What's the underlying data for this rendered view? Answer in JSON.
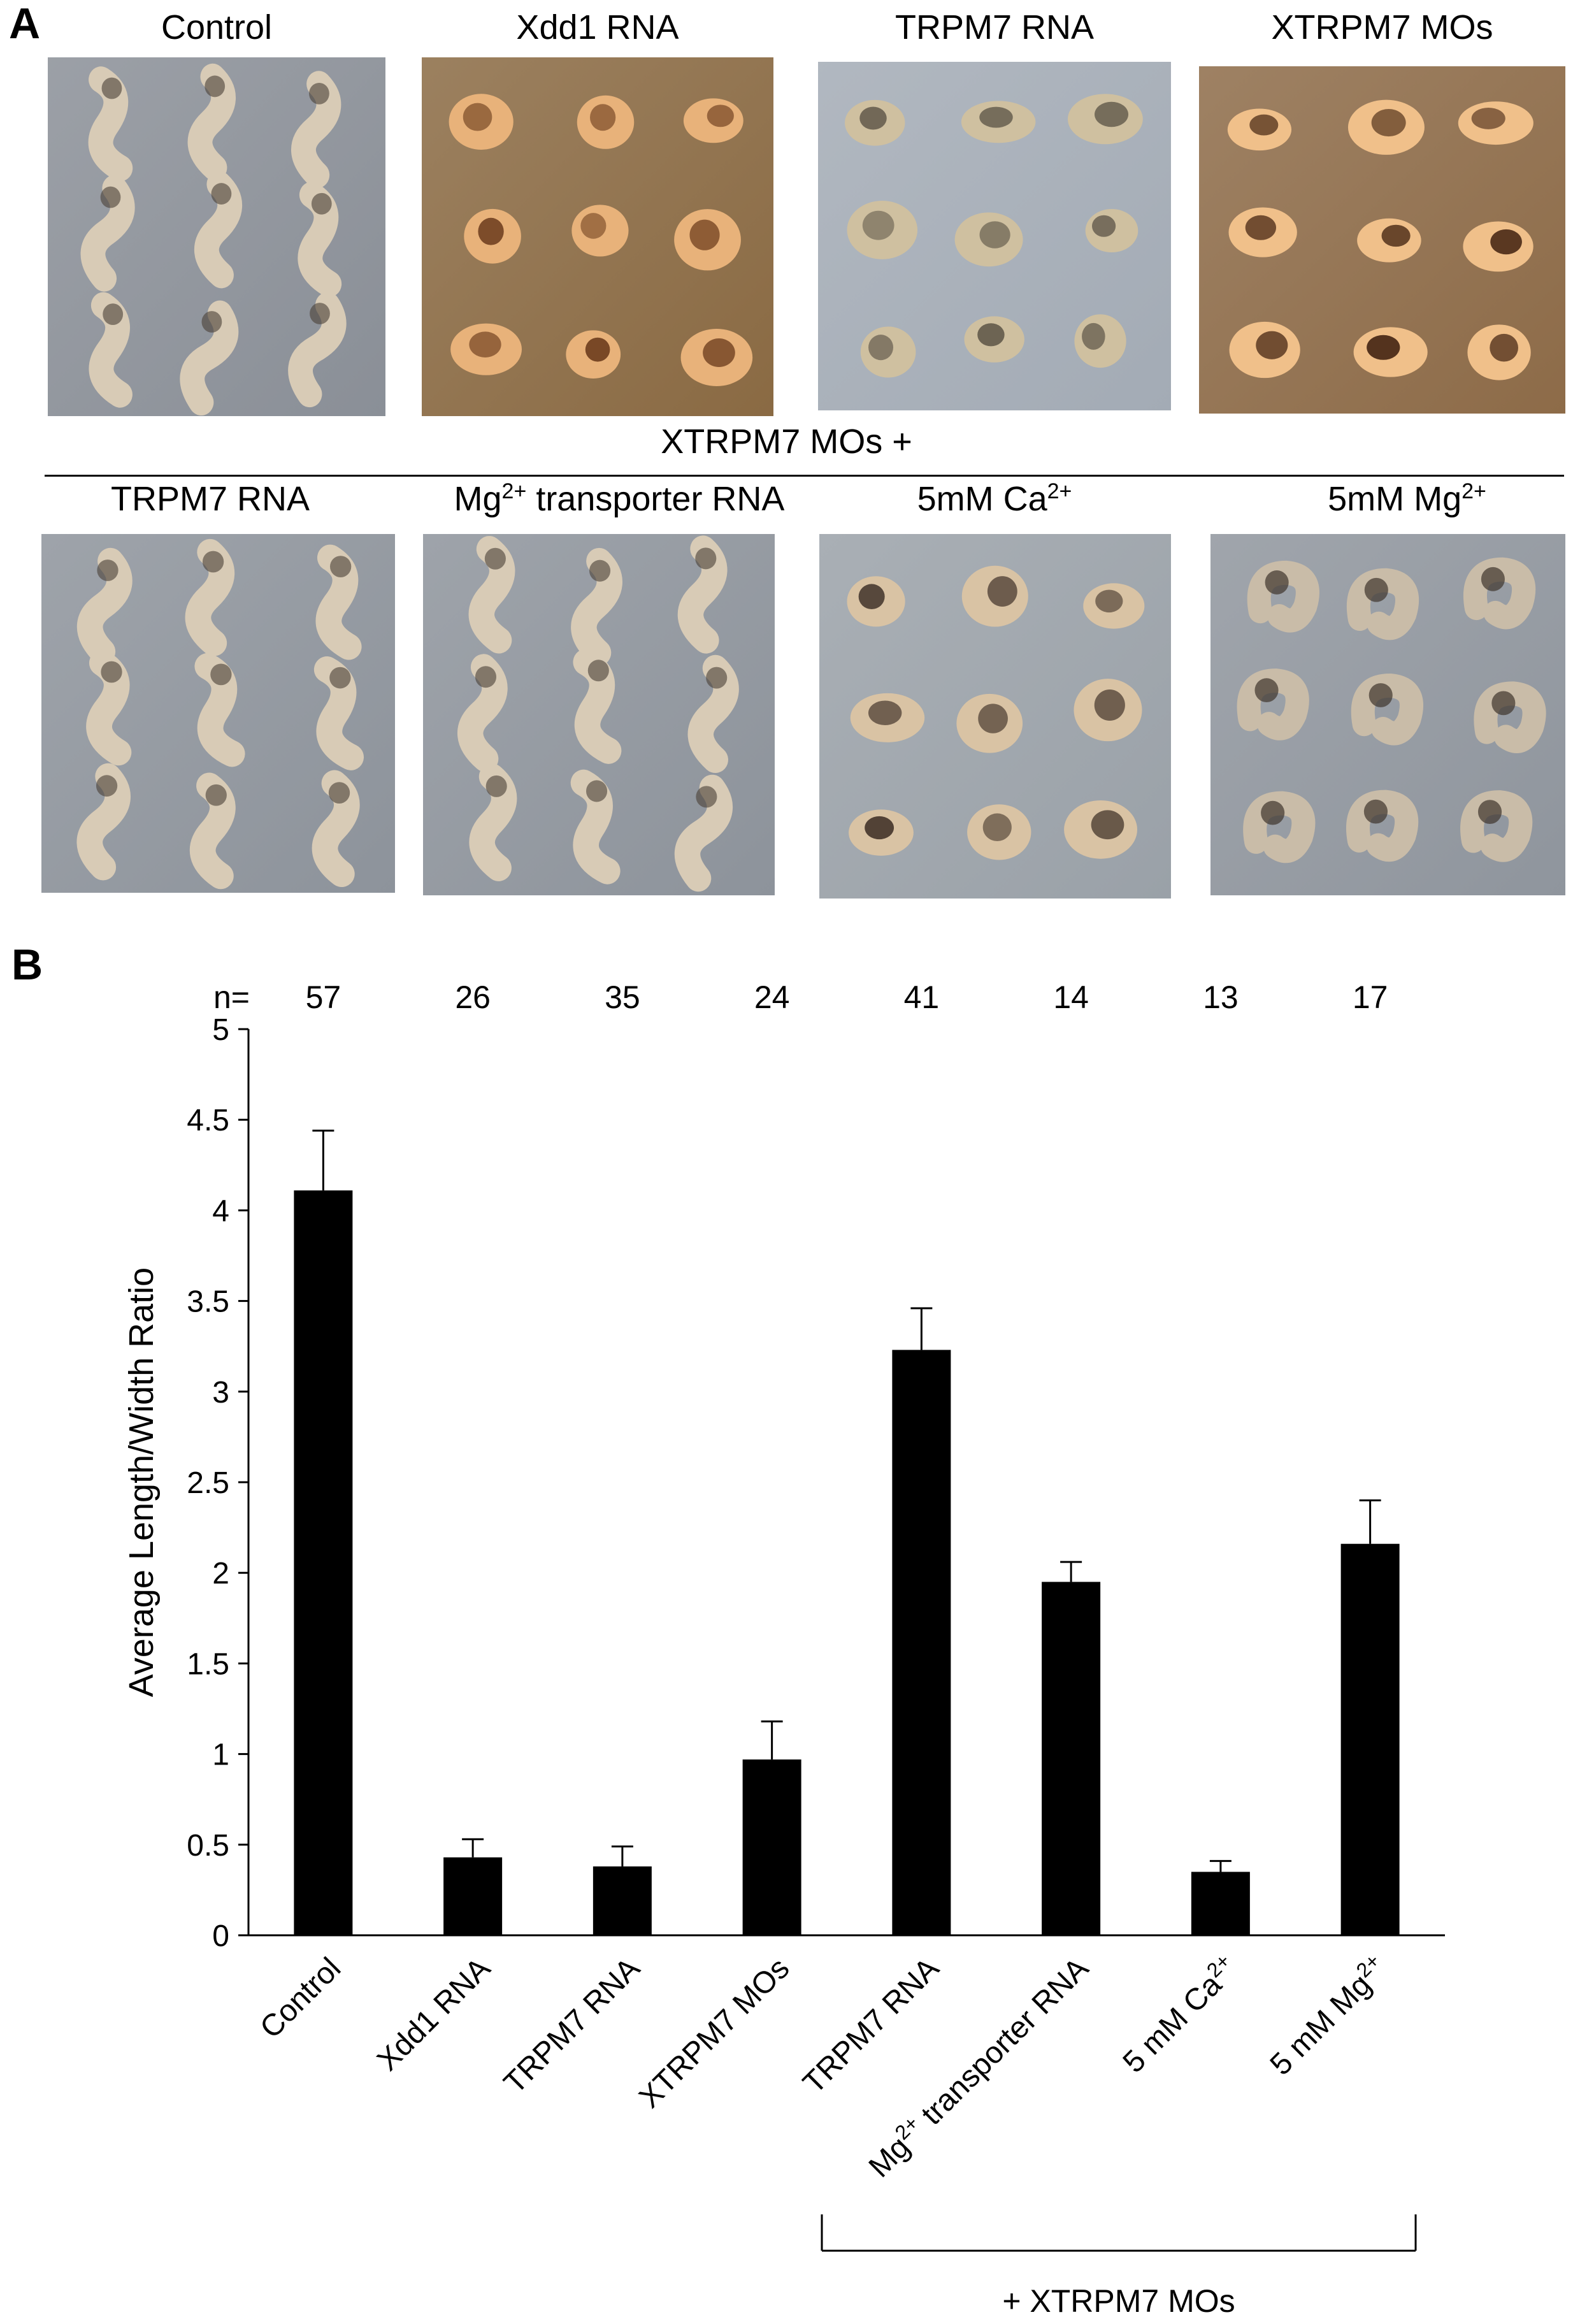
{
  "panel_a": {
    "letter": "A",
    "top_row": [
      {
        "label": "Control",
        "tint": "#8a8f97"
      },
      {
        "label": "Xdd1 RNA",
        "tint": "#8a6a43"
      },
      {
        "label": "TRPM7 RNA",
        "tint": "#a3abb5"
      },
      {
        "label": "XTRPM7 MOs",
        "tint": "#8d6b48"
      }
    ],
    "group_label": "XTRPM7 MOs +",
    "bottom_row": [
      {
        "label": "TRPM7 RNA",
        "label_pre": "",
        "label_sup": "",
        "label_post": "",
        "tint": "#8d939b"
      },
      {
        "label": "",
        "label_pre": "Mg",
        "label_sup": "2+",
        "label_post": " transporter RNA",
        "tint": "#8d939b"
      },
      {
        "label": "",
        "label_pre": "5mM Ca",
        "label_sup": "2+",
        "label_post": "",
        "tint": "#9aa1a8"
      },
      {
        "label": "",
        "label_pre": "5mM Mg",
        "label_sup": "2+",
        "label_post": "",
        "tint": "#8f959d"
      }
    ]
  },
  "panel_b": {
    "letter": "B",
    "n_prefix": "n=",
    "group_bracket_label": "+ XTRPM7 MOs"
  },
  "chart_data": {
    "type": "bar",
    "categories": [
      "Control",
      "Xdd1 RNA",
      "TRPM7 RNA",
      "XTRPM7 MOs",
      "TRPM7 RNA",
      "Mg2+ transporter RNA",
      "5 mM Ca2+",
      "5 mM Mg2+"
    ],
    "category_parts": [
      {
        "pre": "Control",
        "sup": "",
        "post": ""
      },
      {
        "pre": "Xdd1 RNA",
        "sup": "",
        "post": ""
      },
      {
        "pre": "TRPM7 RNA",
        "sup": "",
        "post": ""
      },
      {
        "pre": "XTRPM7 MOs",
        "sup": "",
        "post": ""
      },
      {
        "pre": "TRPM7 RNA",
        "sup": "",
        "post": ""
      },
      {
        "pre": "Mg",
        "sup": "2+",
        "post": " transporter RNA"
      },
      {
        "pre": "5 mM Ca",
        "sup": "2+",
        "post": ""
      },
      {
        "pre": "5 mM Mg",
        "sup": "2+",
        "post": ""
      }
    ],
    "values": [
      4.11,
      0.43,
      0.38,
      0.97,
      3.23,
      1.95,
      0.35,
      2.16
    ],
    "errors": [
      0.33,
      0.1,
      0.11,
      0.21,
      0.23,
      0.11,
      0.06,
      0.24
    ],
    "n": [
      57,
      26,
      35,
      24,
      41,
      14,
      13,
      17
    ],
    "ylabel": "Average Length/Width Ratio",
    "xlabel": "",
    "ylim": [
      0,
      5
    ],
    "yticks": [
      "0",
      "0.5",
      "1",
      "1.5",
      "2",
      "2.5",
      "3",
      "3.5",
      "4",
      "4.5",
      "5"
    ],
    "bar_color": "#000000",
    "grid": false
  }
}
